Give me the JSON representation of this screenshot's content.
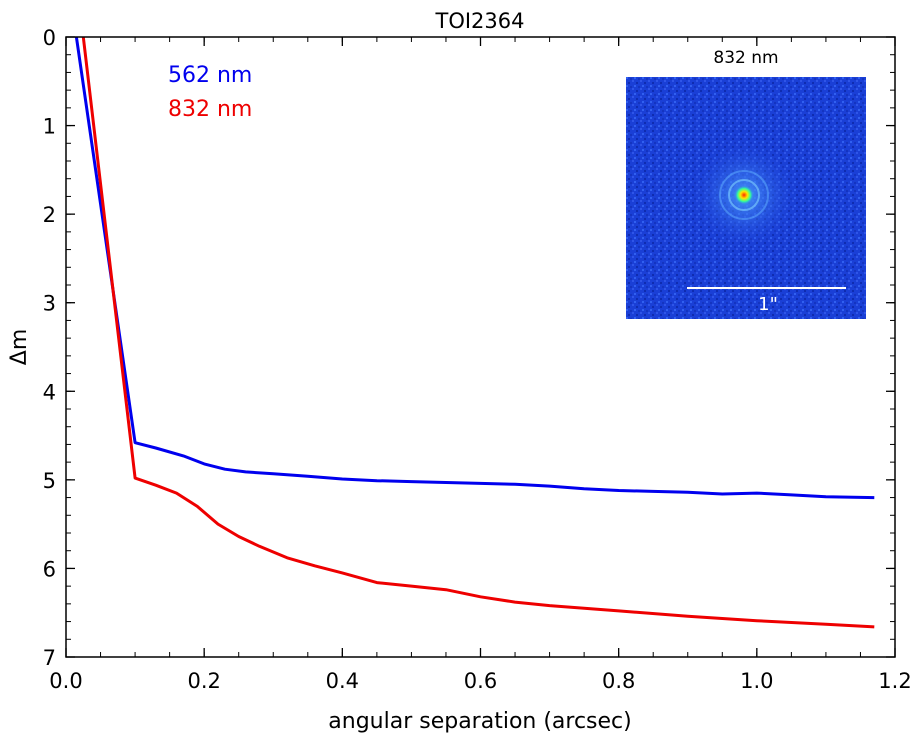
{
  "chart_data": {
    "type": "line",
    "title": "TOI2364",
    "xlabel": "angular separation (arcsec)",
    "ylabel": "Δm",
    "xlim": [
      0.0,
      1.2
    ],
    "ylim": [
      7,
      0
    ],
    "y_inverted": true,
    "grid": false,
    "legend_placement": "top-left",
    "x_ticks": [
      "0.0",
      "0.2",
      "0.4",
      "0.6",
      "0.8",
      "1.0",
      "1.2"
    ],
    "y_ticks": [
      "0",
      "1",
      "2",
      "3",
      "4",
      "5",
      "6",
      "7"
    ],
    "series": [
      {
        "name": "562 nm",
        "color": "#0000ee",
        "x": [
          0.015,
          0.1,
          0.13,
          0.17,
          0.2,
          0.23,
          0.26,
          0.3,
          0.35,
          0.4,
          0.45,
          0.5,
          0.55,
          0.6,
          0.65,
          0.7,
          0.75,
          0.8,
          0.85,
          0.9,
          0.95,
          1.0,
          1.05,
          1.1,
          1.17
        ],
        "y": [
          0.0,
          4.58,
          4.64,
          4.73,
          4.82,
          4.88,
          4.91,
          4.93,
          4.96,
          4.99,
          5.01,
          5.02,
          5.03,
          5.04,
          5.05,
          5.07,
          5.1,
          5.12,
          5.13,
          5.14,
          5.16,
          5.15,
          5.17,
          5.19,
          5.2
        ]
      },
      {
        "name": "832 nm",
        "color": "#ee0000",
        "x": [
          0.025,
          0.1,
          0.13,
          0.16,
          0.19,
          0.22,
          0.25,
          0.28,
          0.32,
          0.36,
          0.4,
          0.45,
          0.5,
          0.55,
          0.6,
          0.65,
          0.7,
          0.8,
          0.9,
          1.0,
          1.1,
          1.17
        ],
        "y": [
          0.0,
          4.98,
          5.06,
          5.15,
          5.3,
          5.5,
          5.64,
          5.75,
          5.88,
          5.97,
          6.05,
          6.16,
          6.2,
          6.24,
          6.32,
          6.38,
          6.42,
          6.48,
          6.54,
          6.59,
          6.63,
          6.66
        ]
      }
    ],
    "inset": {
      "label": "832 nm",
      "scale_bar_label": "1\"",
      "background_color": "#1a3fd6",
      "core_color": "#ff2a00"
    }
  }
}
